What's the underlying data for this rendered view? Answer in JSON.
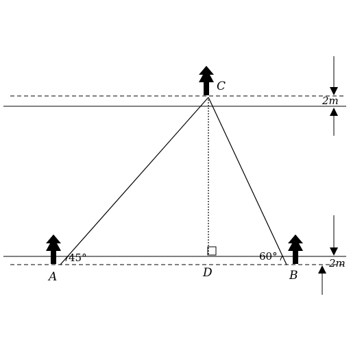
{
  "points": {
    "A": "A",
    "B": "B",
    "C": "C",
    "D": "D"
  },
  "angles": {
    "at_a": "45°",
    "at_b": "60°"
  },
  "dimensions": {
    "top": "2m",
    "bottom": "2m"
  },
  "icons": {
    "tree": "tree-icon",
    "arrow": "arrow-icon",
    "right_angle": "right-angle-marker"
  }
}
